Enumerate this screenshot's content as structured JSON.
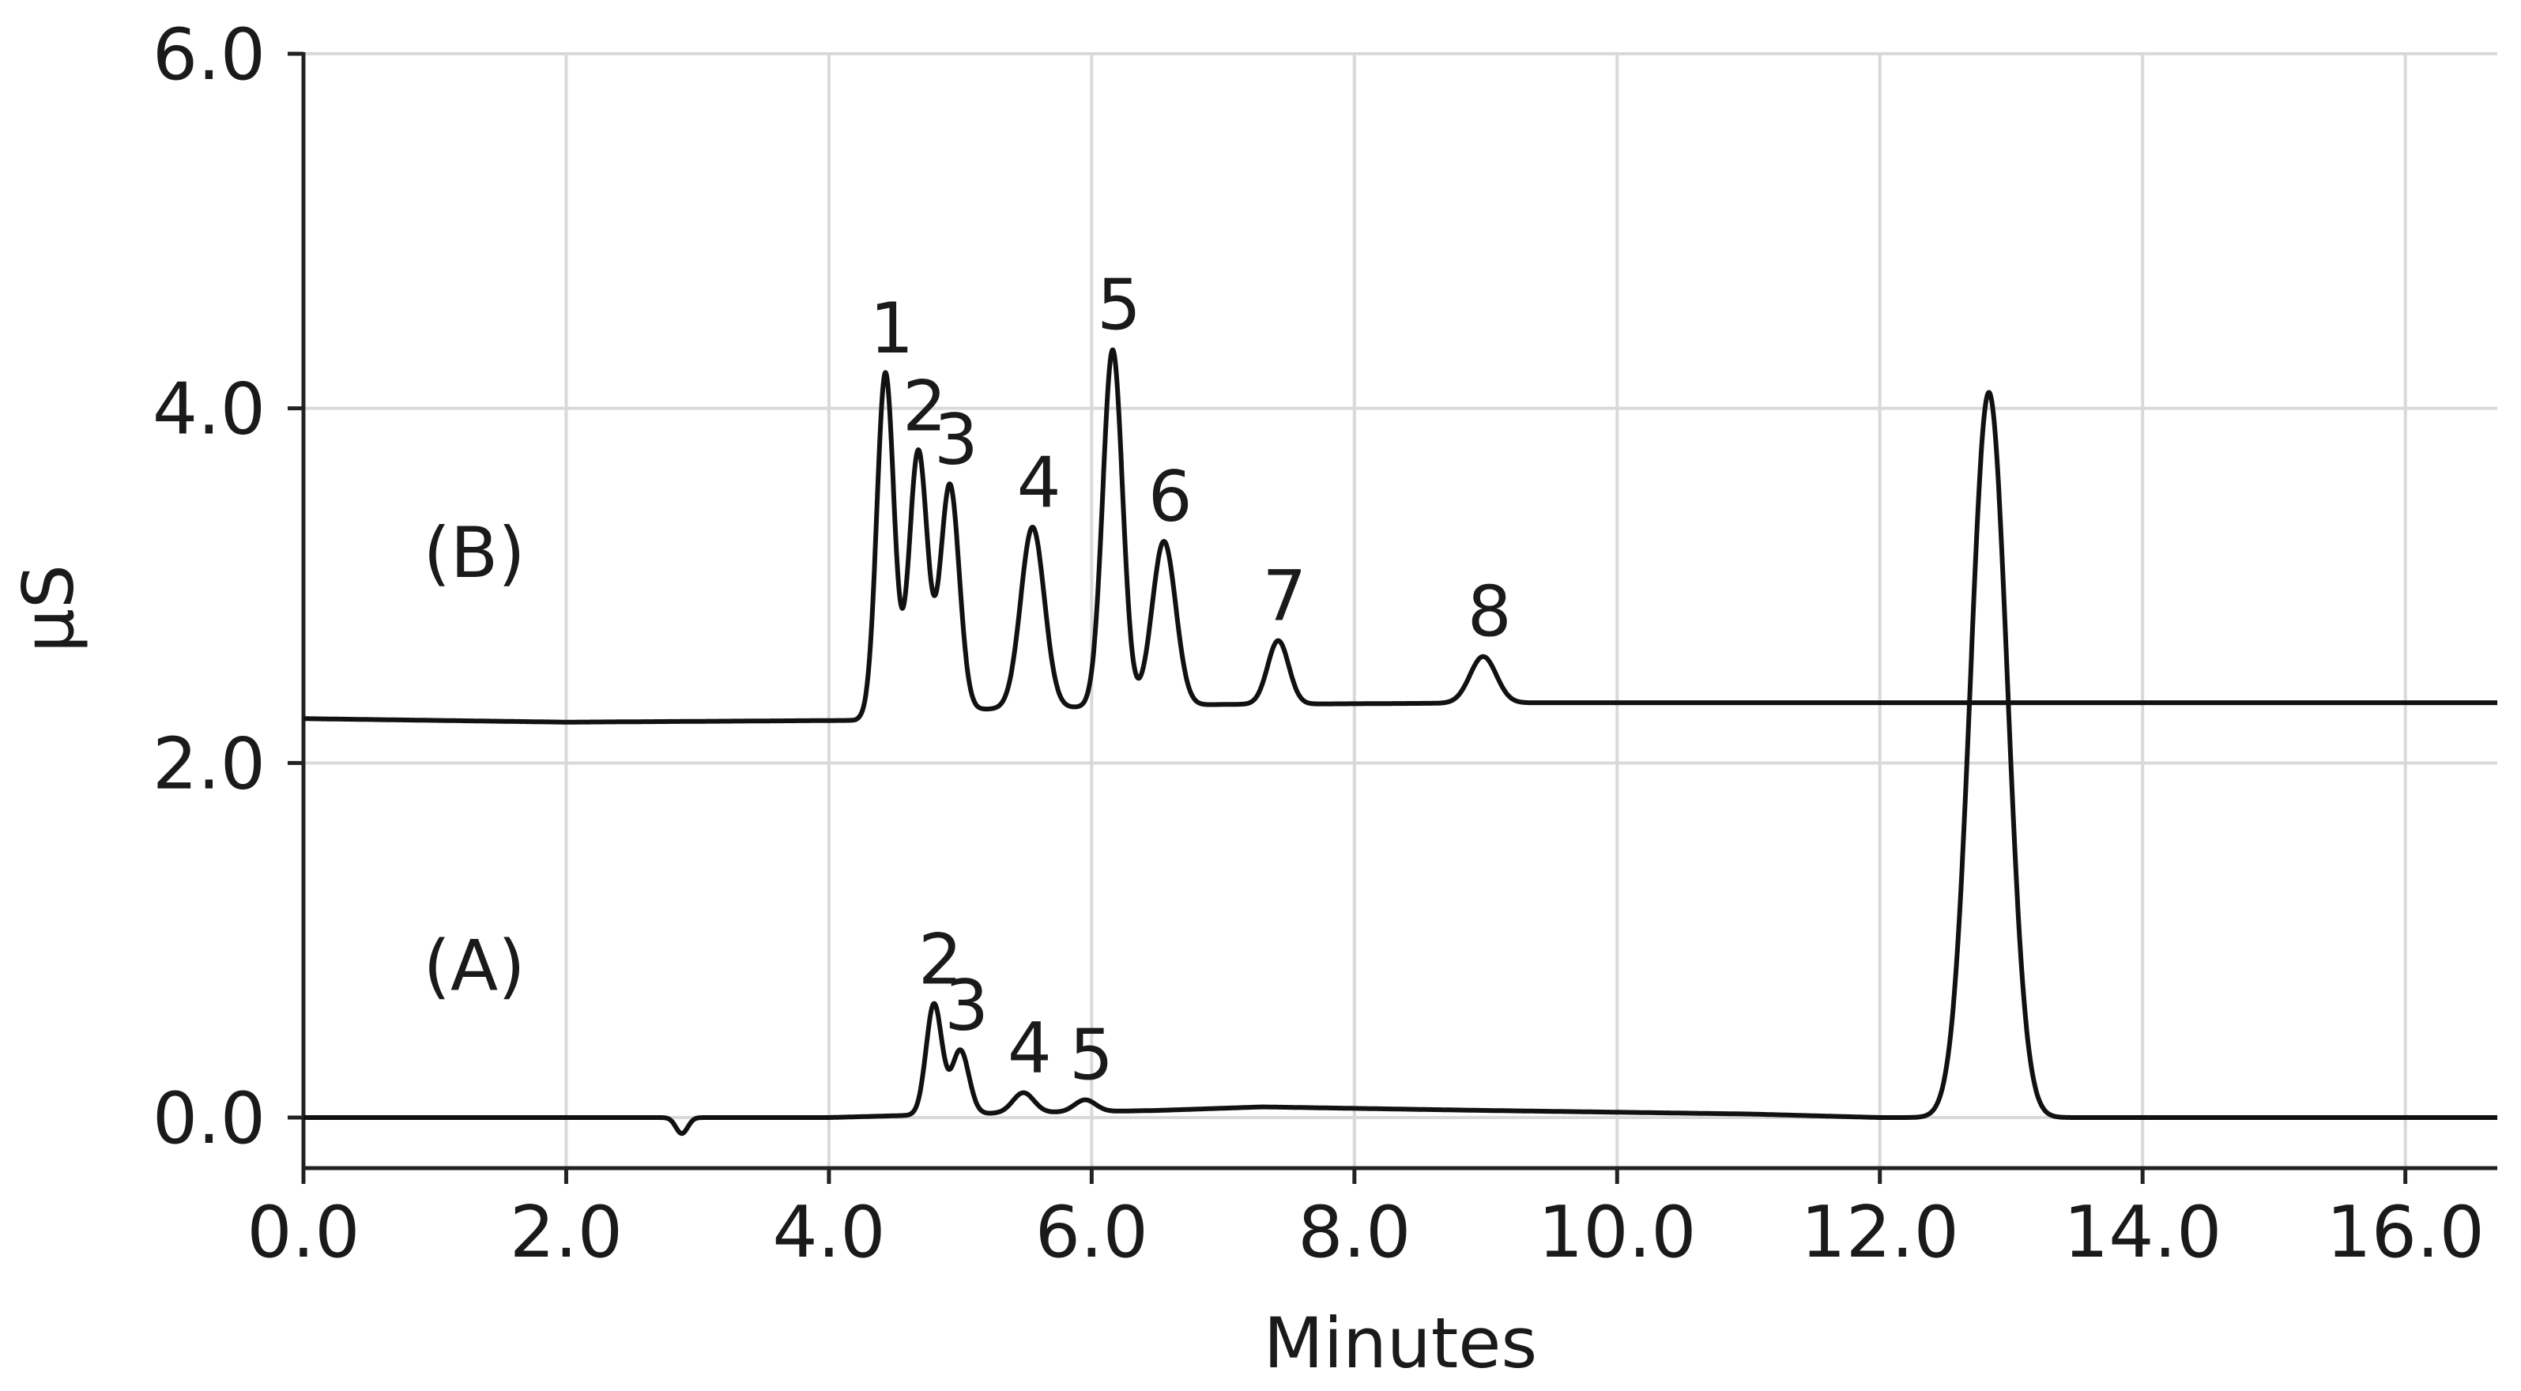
{
  "chart_data": {
    "type": "line",
    "title": "",
    "xlabel": "Minutes",
    "ylabel": "µS",
    "xlim": [
      0,
      16.7
    ],
    "ylim": [
      -0.3,
      6.0
    ],
    "grid": true,
    "xticks": [
      0,
      2,
      4,
      6,
      8,
      10,
      12,
      14,
      16
    ],
    "xtick_labels": [
      "0.0",
      "2.0",
      "4.0",
      "6.0",
      "8.0",
      "10.0",
      "12.0",
      "14.0",
      "16.0"
    ],
    "yticks": [
      0,
      2,
      4,
      6
    ],
    "ytick_labels": [
      "0.0",
      "2.0",
      "4.0",
      "6.0"
    ],
    "series": [
      {
        "name": "(B)",
        "label_at": {
          "x": 1.3,
          "y": 3.05
        },
        "baseline_points": [
          [
            0.0,
            2.25
          ],
          [
            2.0,
            2.23
          ],
          [
            4.2,
            2.24
          ],
          [
            5.0,
            2.3
          ],
          [
            7.0,
            2.33
          ],
          [
            9.5,
            2.34
          ],
          [
            16.7,
            2.34
          ]
        ],
        "peaks": [
          {
            "label": "1",
            "rt": 4.43,
            "height": 4.2,
            "width": 0.065
          },
          {
            "label": "2",
            "rt": 4.68,
            "height": 3.76,
            "width": 0.07
          },
          {
            "label": "3",
            "rt": 4.92,
            "height": 3.57,
            "width": 0.072
          },
          {
            "label": "4",
            "rt": 5.55,
            "height": 3.33,
            "width": 0.09
          },
          {
            "label": "5",
            "rt": 6.16,
            "height": 4.33,
            "width": 0.075
          },
          {
            "label": "6",
            "rt": 6.55,
            "height": 3.25,
            "width": 0.09
          },
          {
            "label": "7",
            "rt": 7.42,
            "height": 2.69,
            "width": 0.08
          },
          {
            "label": "8",
            "rt": 8.98,
            "height": 2.6,
            "width": 0.1
          }
        ]
      },
      {
        "name": "(A)",
        "label_at": {
          "x": 1.3,
          "y": 0.72
        },
        "baseline_points": [
          [
            0.0,
            0.0
          ],
          [
            4.0,
            0.0
          ],
          [
            5.0,
            0.02
          ],
          [
            6.5,
            0.04
          ],
          [
            7.3,
            0.06
          ],
          [
            9.0,
            0.04
          ],
          [
            11.0,
            0.02
          ],
          [
            12.0,
            0.0
          ],
          [
            16.7,
            0.0
          ]
        ],
        "dips": [
          {
            "rt": 2.88,
            "depth": -0.09,
            "width": 0.045
          }
        ],
        "peaks": [
          {
            "label": "2",
            "rt": 4.8,
            "height": 0.64,
            "width": 0.06
          },
          {
            "label": "3",
            "rt": 5.0,
            "height": 0.38,
            "width": 0.065
          },
          {
            "label": "4",
            "rt": 5.48,
            "height": 0.14,
            "width": 0.08
          },
          {
            "label": "5",
            "rt": 5.95,
            "height": 0.1,
            "width": 0.08
          },
          {
            "label": "",
            "rt": 12.83,
            "height": 4.09,
            "width": 0.14
          }
        ]
      }
    ]
  },
  "colors": {
    "trace": "#111111",
    "grid": "#d9d9d9",
    "axis": "#222222",
    "text": "#1a1a1a"
  }
}
